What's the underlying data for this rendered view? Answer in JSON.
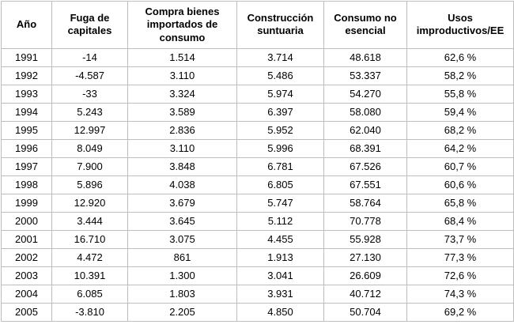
{
  "chart_data": {
    "type": "table",
    "title": "",
    "columns": [
      "Año",
      "Fuga de capitales",
      "Compra bienes importados de consumo",
      "Construcción suntuaria",
      "Consumo no esencial",
      "Usos improductivos/EE"
    ],
    "rows": [
      [
        "1991",
        "-14",
        "1.514",
        "3.714",
        "48.618",
        "62,6 %"
      ],
      [
        "1992",
        "-4.587",
        "3.110",
        "5.486",
        "53.337",
        "58,2 %"
      ],
      [
        "1993",
        "-33",
        "3.324",
        "5.974",
        "54.270",
        "55,8 %"
      ],
      [
        "1994",
        "5.243",
        "3.589",
        "6.397",
        "58.080",
        "59,4 %"
      ],
      [
        "1995",
        "12.997",
        "2.836",
        "5.952",
        "62.040",
        "68,2 %"
      ],
      [
        "1996",
        "8.049",
        "3.110",
        "5.996",
        "68.391",
        "64,2 %"
      ],
      [
        "1997",
        "7.900",
        "3.848",
        "6.781",
        "67.526",
        "60,7 %"
      ],
      [
        "1998",
        "5.896",
        "4.038",
        "6.805",
        "67.551",
        "60,6 %"
      ],
      [
        "1999",
        "12.920",
        "3.679",
        "5.747",
        "58.764",
        "65,8 %"
      ],
      [
        "2000",
        "3.444",
        "3.645",
        "5.112",
        "70.778",
        "68,4 %"
      ],
      [
        "2001",
        "16.710",
        "3.075",
        "4.455",
        "55.928",
        "73,7 %"
      ],
      [
        "2002",
        "4.472",
        "861",
        "1.913",
        "27.130",
        "77,3 %"
      ],
      [
        "2003",
        "10.391",
        "1.300",
        "3.041",
        "26.609",
        "72,6 %"
      ],
      [
        "2004",
        "6.085",
        "1.803",
        "3.931",
        "40.712",
        "74,3 %"
      ],
      [
        "2005",
        "-3.810",
        "2.205",
        "4.850",
        "50.704",
        "69,2 %"
      ]
    ],
    "layout": {
      "grid": true,
      "header_bold": true,
      "border_color": "#bdbdbd",
      "text_color": "#000000",
      "background": "#ffffff"
    }
  }
}
